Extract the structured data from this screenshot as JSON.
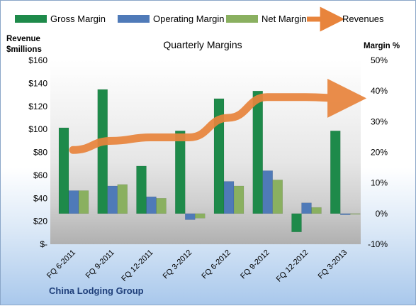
{
  "chart_data": {
    "type": "bar",
    "title": "Quarterly Margins",
    "categories": [
      "FQ 6-2011",
      "FQ 9-2011",
      "FQ 12-2011",
      "FQ 3-2012",
      "FQ 6-2012",
      "FQ 9-2012",
      "FQ 12-2012",
      "FQ 3-2013"
    ],
    "y_left_label": [
      "Revenue",
      "$millions"
    ],
    "y_right_label": "Margin %",
    "y_left_ticks": [
      "$-",
      "$20",
      "$40",
      "$60",
      "$80",
      "$100",
      "$120",
      "$140",
      "$160"
    ],
    "y_right_ticks": [
      "-10%",
      "0%",
      "10%",
      "20%",
      "30%",
      "40%",
      "50%"
    ],
    "ylim_left": [
      0,
      160
    ],
    "ylim_right": [
      -10,
      50
    ],
    "series": [
      {
        "name": "Gross Margin",
        "axis": "right",
        "kind": "bar",
        "color": "#1e8a4a",
        "values": [
          28,
          40.5,
          15.5,
          27,
          37.5,
          40,
          -6,
          27
        ]
      },
      {
        "name": "Operating Margin",
        "axis": "right",
        "kind": "bar",
        "color": "#4f7ab8",
        "values": [
          7.5,
          9,
          5.5,
          -2,
          10.5,
          14,
          3.5,
          -0.4
        ]
      },
      {
        "name": "Net Margin",
        "axis": "right",
        "kind": "bar",
        "color": "#8ab060",
        "values": [
          7.5,
          9.5,
          5,
          -1.5,
          9,
          11,
          2,
          -0.2
        ]
      },
      {
        "name": "Revenues",
        "axis": "left",
        "kind": "line",
        "color": "#e8843c",
        "values": [
          82,
          90,
          93,
          93,
          110,
          128,
          128,
          127
        ]
      }
    ],
    "legend_position": "top",
    "footer": "China Lodging Group"
  }
}
